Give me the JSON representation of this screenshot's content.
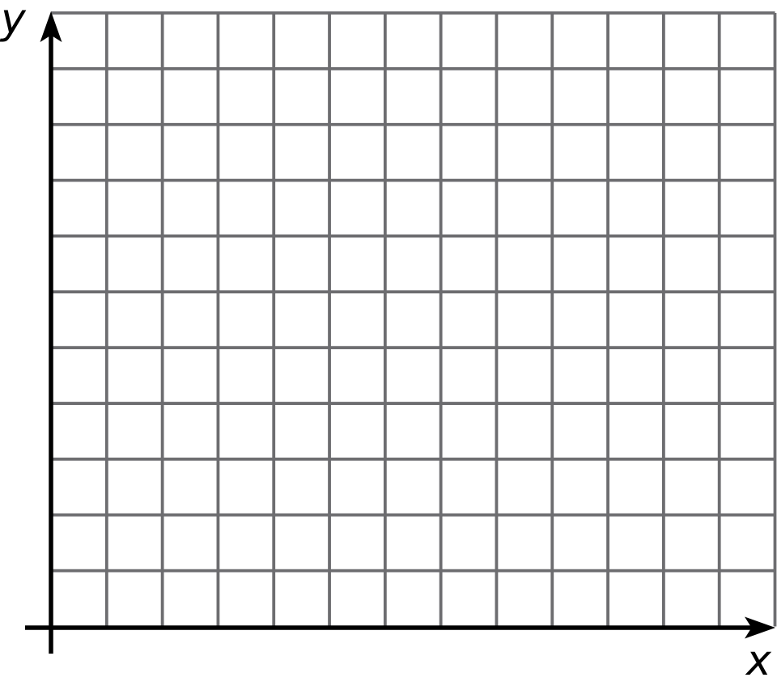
{
  "page": {
    "background": "#ffffff"
  },
  "chart_data": {
    "type": "blank-grid",
    "title": "",
    "xlabel": "x",
    "ylabel": "y",
    "grid": {
      "visible": true,
      "columns": 13,
      "rows": 11,
      "cell_shape": "square"
    },
    "axes": {
      "x_axis_arrow": "right",
      "y_axis_arrow": "up",
      "tick_labels": [],
      "data_points": []
    },
    "series": [],
    "colors": {
      "grid_line": "#6d6d70",
      "axis": "#000000",
      "label": "#000000",
      "background": "#ffffff"
    }
  }
}
